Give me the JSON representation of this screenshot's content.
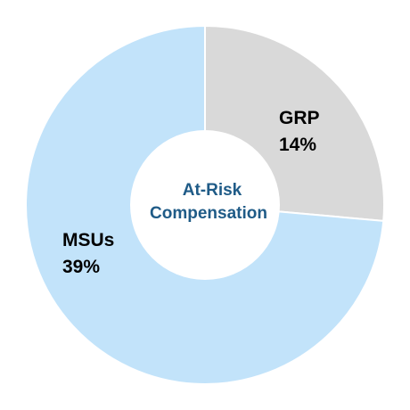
{
  "chart_data": {
    "type": "pie",
    "title": "At-Risk Compensation",
    "categories": [
      "GRP",
      "MSUs"
    ],
    "values": [
      14,
      39
    ],
    "labels": [
      "14%",
      "39%"
    ],
    "colors": [
      "#d9d9d9",
      "#c2e3fa"
    ],
    "center_title_lines": [
      "At-Risk",
      "Compensation"
    ]
  }
}
